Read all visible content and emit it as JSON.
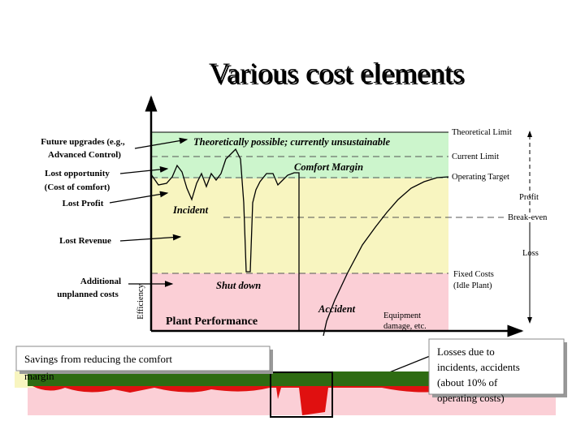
{
  "title": "Various cost elements",
  "left_labels": [
    {
      "lines": [
        "Future upgrades (e.g.,",
        "Advanced Control)"
      ]
    },
    {
      "lines": [
        "Lost opportunity",
        "(Cost of comfort)"
      ]
    },
    {
      "lines": [
        "Lost Profit"
      ]
    },
    {
      "lines": [
        "Lost Revenue"
      ]
    },
    {
      "lines": [
        "Additional",
        "unplanned costs"
      ]
    }
  ],
  "right_labels": [
    {
      "lines": [
        "Theoretical Limit"
      ]
    },
    {
      "lines": [
        "Current  Limit"
      ]
    },
    {
      "lines": [
        "Operating Target"
      ]
    },
    {
      "lines": [
        "Profit"
      ]
    },
    {
      "lines": [
        "Break-even"
      ]
    },
    {
      "lines": [
        "Loss"
      ]
    },
    {
      "lines": [
        "Fixed Costs",
        "(Idle Plant)"
      ]
    }
  ],
  "zone_labels": {
    "theoretical": "Theoretically possible; currently unsustainable",
    "comfort": "Comfort Margin",
    "incident": "Incident",
    "shutdown": "Shut down",
    "accident": "Accident",
    "plant": "Plant Performance",
    "damage": [
      "Equipment",
      "damage, etc."
    ]
  },
  "y_axis_label": "Efficiency",
  "callouts": {
    "savings": [
      "Savings from reducing the comfort",
      "margin"
    ],
    "losses": [
      "Losses due to",
      "incidents, accidents",
      "(about 10% of",
      "operating costs)"
    ]
  }
}
